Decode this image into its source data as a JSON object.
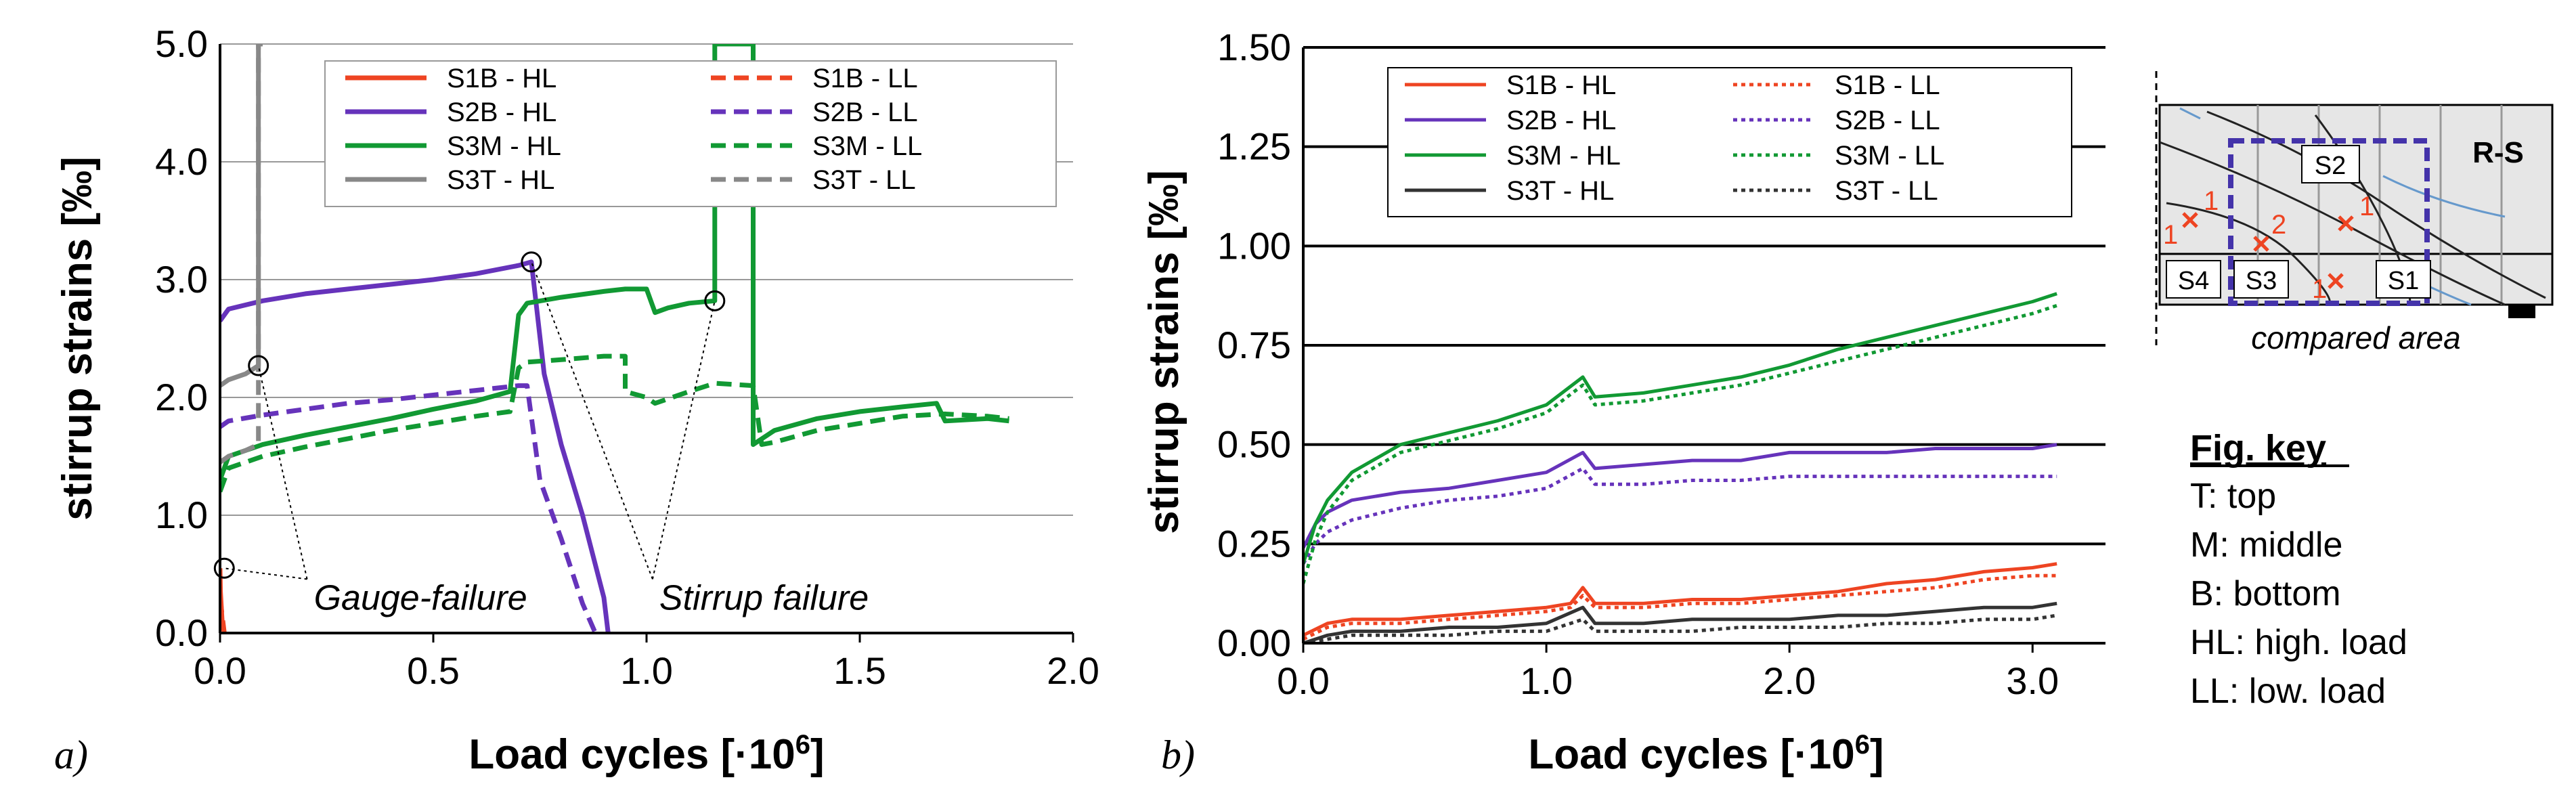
{
  "colors": {
    "S1B": "#ee4422",
    "S2B": "#6633bb",
    "S3M": "#119933",
    "S3T_a": "#888888",
    "S3T_b": "#333333"
  },
  "chart_data": [
    {
      "type": "line",
      "panel_label": "a)",
      "xlabel": "Load cycles  [·10",
      "xlabel_sup": "6",
      "xlabel_end": "]",
      "ylabel": "stirrup strains [‰]",
      "xlim": [
        0,
        2.0
      ],
      "ylim": [
        0,
        5.0
      ],
      "x_ticks": [
        "0.0",
        "0.5",
        "1.0",
        "1.5",
        "2.0"
      ],
      "y_ticks": [
        "0.0",
        "1.0",
        "2.0",
        "3.0",
        "4.0",
        "5.0"
      ],
      "grid": "horizontal",
      "legend_position": "top-right",
      "series": [
        {
          "name": "S1B - HL",
          "style": "solid",
          "color": "#ee4422",
          "x": [
            0,
            0.001,
            0.005,
            0.01
          ],
          "y": [
            0.55,
            0.35,
            0.1,
            0.0
          ]
        },
        {
          "name": "S1B - LL",
          "style": "dashed",
          "color": "#ee4422",
          "x": [
            0,
            0.01
          ],
          "y": [
            0.3,
            0.0
          ]
        },
        {
          "name": "S2B - HL",
          "style": "solid",
          "color": "#6633bb",
          "x": [
            0,
            0.02,
            0.1,
            0.2,
            0.3,
            0.4,
            0.5,
            0.6,
            0.7,
            0.73,
            0.76,
            0.8,
            0.85,
            0.9,
            0.91
          ],
          "y": [
            2.65,
            2.75,
            2.82,
            2.88,
            2.92,
            2.96,
            3.0,
            3.05,
            3.12,
            3.15,
            2.2,
            1.6,
            1.0,
            0.3,
            0.0
          ]
        },
        {
          "name": "S2B - LL",
          "style": "dashed",
          "color": "#6633bb",
          "x": [
            0,
            0.02,
            0.1,
            0.2,
            0.3,
            0.4,
            0.5,
            0.6,
            0.7,
            0.72,
            0.75,
            0.8,
            0.85,
            0.88
          ],
          "y": [
            1.75,
            1.8,
            1.85,
            1.9,
            1.95,
            1.98,
            2.02,
            2.06,
            2.1,
            2.1,
            1.3,
            0.8,
            0.25,
            0.0
          ]
        },
        {
          "name": "S3M - HL",
          "style": "solid",
          "color": "#119933",
          "x": [
            0,
            0.02,
            0.1,
            0.2,
            0.3,
            0.4,
            0.5,
            0.6,
            0.65,
            0.68,
            0.7,
            0.72,
            0.8,
            0.9,
            0.95,
            1.0,
            1.02,
            1.05,
            1.1,
            1.16,
            1.16,
            1.25,
            1.25,
            1.3,
            1.4,
            1.5,
            1.6,
            1.68,
            1.7,
            1.8,
            1.85
          ],
          "y": [
            1.3,
            1.5,
            1.6,
            1.68,
            1.75,
            1.82,
            1.9,
            1.97,
            2.02,
            2.05,
            2.7,
            2.8,
            2.85,
            2.9,
            2.92,
            2.92,
            2.72,
            2.76,
            2.8,
            2.82,
            5.0,
            5.0,
            1.6,
            1.72,
            1.82,
            1.88,
            1.92,
            1.95,
            1.8,
            1.82,
            1.8
          ]
        },
        {
          "name": "S3M - LL",
          "style": "dashed",
          "color": "#119933",
          "x": [
            0,
            0.02,
            0.1,
            0.2,
            0.3,
            0.4,
            0.5,
            0.6,
            0.68,
            0.7,
            0.72,
            0.8,
            0.9,
            0.95,
            0.95,
            1.0,
            1.02,
            1.1,
            1.16,
            1.25,
            1.27,
            1.3,
            1.4,
            1.5,
            1.6,
            1.7,
            1.8,
            1.85
          ],
          "y": [
            1.2,
            1.4,
            1.5,
            1.58,
            1.65,
            1.72,
            1.78,
            1.84,
            1.88,
            2.25,
            2.3,
            2.32,
            2.35,
            2.35,
            2.05,
            2.0,
            1.95,
            2.05,
            2.12,
            2.1,
            1.6,
            1.62,
            1.72,
            1.78,
            1.84,
            1.86,
            1.84,
            1.82
          ]
        },
        {
          "name": "S3T - HL",
          "style": "solid",
          "color": "#888888",
          "x": [
            0,
            0.02,
            0.06,
            0.09,
            0.09,
            0.1
          ],
          "y": [
            2.1,
            2.15,
            2.2,
            2.27,
            5.0,
            5.0
          ]
        },
        {
          "name": "S3T - LL",
          "style": "dashed",
          "color": "#888888",
          "x": [
            0,
            0.02,
            0.06,
            0.09,
            0.09
          ],
          "y": [
            1.45,
            1.5,
            1.55,
            1.6,
            5.0
          ]
        }
      ],
      "markers": [
        {
          "x": 0.01,
          "y": 0.55
        },
        {
          "x": 0.09,
          "y": 2.27
        },
        {
          "x": 0.73,
          "y": 3.15
        },
        {
          "x": 1.16,
          "y": 2.82
        }
      ],
      "annotations": [
        {
          "text": "Gauge-failure",
          "x": 0.22,
          "y": 0.4,
          "targets": [
            [
              0.01,
              0.55
            ],
            [
              0.09,
              2.27
            ]
          ]
        },
        {
          "text": "Stirrup failure",
          "x": 1.03,
          "y": 0.4,
          "targets": [
            [
              0.73,
              3.15
            ],
            [
              1.16,
              2.82
            ]
          ]
        }
      ]
    },
    {
      "type": "line",
      "panel_label": "b)",
      "xlabel": "Load cycles  [·10",
      "xlabel_sup": "6",
      "xlabel_end": "]",
      "ylabel": "stirrup strains [‰]",
      "xlim": [
        0,
        3.3
      ],
      "ylim": [
        0,
        1.5
      ],
      "x_ticks_values": [
        0,
        1,
        2,
        3
      ],
      "x_ticks": [
        "0.0",
        "1.0",
        "2.0",
        "3.0"
      ],
      "y_ticks": [
        "0.00",
        "0.25",
        "0.50",
        "0.75",
        "1.00",
        "1.25",
        "1.50"
      ],
      "grid": "horizontal",
      "legend_position": "top",
      "series": [
        {
          "name": "S1B - HL",
          "style": "solid",
          "color": "#ee4422",
          "x": [
            0,
            0.1,
            0.2,
            0.4,
            0.6,
            0.8,
            1.0,
            1.1,
            1.15,
            1.2,
            1.4,
            1.6,
            1.8,
            2.0,
            2.2,
            2.4,
            2.6,
            2.8,
            3.0,
            3.1
          ],
          "y": [
            0.02,
            0.05,
            0.06,
            0.06,
            0.07,
            0.08,
            0.09,
            0.1,
            0.14,
            0.1,
            0.1,
            0.11,
            0.11,
            0.12,
            0.13,
            0.15,
            0.16,
            0.18,
            0.19,
            0.2
          ]
        },
        {
          "name": "S1B - LL",
          "style": "dotted",
          "color": "#ee4422",
          "x": [
            0,
            0.1,
            0.2,
            0.4,
            0.6,
            0.8,
            1.0,
            1.1,
            1.15,
            1.2,
            1.4,
            1.6,
            1.8,
            2.0,
            2.2,
            2.4,
            2.6,
            2.8,
            3.0,
            3.1
          ],
          "y": [
            0.01,
            0.04,
            0.05,
            0.05,
            0.06,
            0.07,
            0.08,
            0.09,
            0.12,
            0.09,
            0.09,
            0.1,
            0.1,
            0.11,
            0.12,
            0.13,
            0.14,
            0.16,
            0.17,
            0.17
          ]
        },
        {
          "name": "S2B - HL",
          "style": "solid",
          "color": "#6633bb",
          "x": [
            0,
            0.05,
            0.1,
            0.2,
            0.4,
            0.6,
            0.8,
            1.0,
            1.15,
            1.2,
            1.4,
            1.6,
            1.8,
            2.0,
            2.2,
            2.4,
            2.6,
            2.8,
            3.0,
            3.1
          ],
          "y": [
            0.24,
            0.3,
            0.33,
            0.36,
            0.38,
            0.39,
            0.41,
            0.43,
            0.48,
            0.44,
            0.45,
            0.46,
            0.46,
            0.48,
            0.48,
            0.48,
            0.49,
            0.49,
            0.49,
            0.5
          ]
        },
        {
          "name": "S2B - LL",
          "style": "dotted",
          "color": "#6633bb",
          "x": [
            0,
            0.05,
            0.1,
            0.2,
            0.4,
            0.6,
            0.8,
            1.0,
            1.15,
            1.2,
            1.4,
            1.6,
            1.8,
            2.0,
            2.2,
            2.4,
            2.6,
            2.8,
            3.0,
            3.1
          ],
          "y": [
            0.2,
            0.25,
            0.28,
            0.31,
            0.34,
            0.36,
            0.37,
            0.39,
            0.44,
            0.4,
            0.4,
            0.41,
            0.41,
            0.42,
            0.42,
            0.42,
            0.42,
            0.42,
            0.42,
            0.42
          ]
        },
        {
          "name": "S3M - HL",
          "style": "solid",
          "color": "#119933",
          "x": [
            0,
            0.05,
            0.1,
            0.2,
            0.4,
            0.6,
            0.8,
            1.0,
            1.15,
            1.2,
            1.4,
            1.6,
            1.8,
            2.0,
            2.2,
            2.4,
            2.6,
            2.8,
            3.0,
            3.1
          ],
          "y": [
            0.2,
            0.3,
            0.36,
            0.43,
            0.5,
            0.53,
            0.56,
            0.6,
            0.67,
            0.62,
            0.63,
            0.65,
            0.67,
            0.7,
            0.74,
            0.77,
            0.8,
            0.83,
            0.86,
            0.88
          ]
        },
        {
          "name": "S3M - LL",
          "style": "dotted",
          "color": "#119933",
          "x": [
            0,
            0.05,
            0.1,
            0.2,
            0.4,
            0.6,
            0.8,
            1.0,
            1.15,
            1.2,
            1.4,
            1.6,
            1.8,
            2.0,
            2.2,
            2.4,
            2.6,
            2.8,
            3.0,
            3.1
          ],
          "y": [
            0.15,
            0.26,
            0.33,
            0.41,
            0.48,
            0.51,
            0.54,
            0.58,
            0.65,
            0.6,
            0.61,
            0.63,
            0.65,
            0.68,
            0.71,
            0.74,
            0.77,
            0.8,
            0.83,
            0.85
          ]
        },
        {
          "name": "S3T - HL",
          "style": "solid",
          "color": "#333333",
          "x": [
            0,
            0.1,
            0.2,
            0.4,
            0.6,
            0.8,
            1.0,
            1.15,
            1.2,
            1.4,
            1.6,
            1.8,
            2.0,
            2.2,
            2.4,
            2.6,
            2.8,
            3.0,
            3.1
          ],
          "y": [
            0.0,
            0.02,
            0.03,
            0.03,
            0.04,
            0.04,
            0.05,
            0.09,
            0.05,
            0.05,
            0.06,
            0.06,
            0.06,
            0.07,
            0.07,
            0.08,
            0.09,
            0.09,
            0.1
          ]
        },
        {
          "name": "S3T - LL",
          "style": "dotted",
          "color": "#333333",
          "x": [
            0,
            0.1,
            0.2,
            0.4,
            0.6,
            0.8,
            1.0,
            1.15,
            1.2,
            1.4,
            1.6,
            1.8,
            2.0,
            2.2,
            2.4,
            2.6,
            2.8,
            3.0,
            3.1
          ],
          "y": [
            0.0,
            0.01,
            0.02,
            0.02,
            0.02,
            0.03,
            0.03,
            0.06,
            0.03,
            0.03,
            0.03,
            0.04,
            0.04,
            0.04,
            0.05,
            0.05,
            0.06,
            0.06,
            0.07
          ]
        }
      ]
    }
  ],
  "inset": {
    "title": "R-S",
    "caption": "compared area",
    "labels": [
      "S2",
      "S4",
      "S3",
      "S1"
    ],
    "crack_numbers": [
      "1",
      "2",
      "1",
      "1",
      "1"
    ]
  },
  "fig_key": {
    "title": "Fig. key",
    "items": [
      "T: top",
      "M: middle",
      "B: bottom",
      "HL: high. load",
      "LL: low. load"
    ]
  }
}
